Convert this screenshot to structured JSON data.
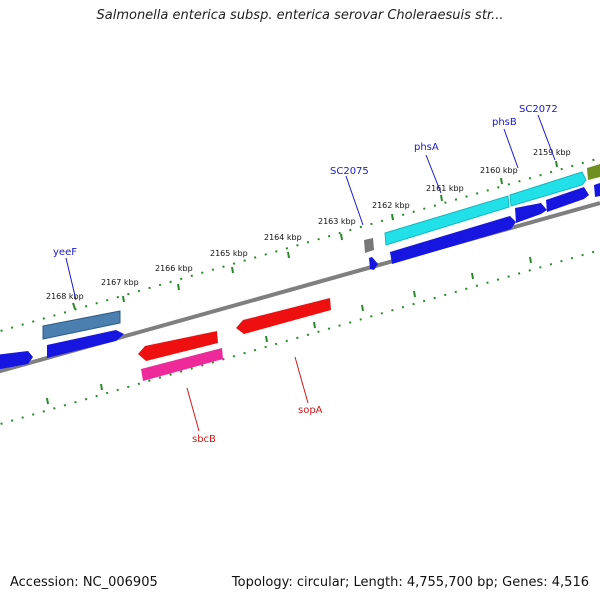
{
  "title": "Salmonella enterica subsp. enterica serovar Choleraesuis str...",
  "footer": {
    "accession": "Accession: NC_006905",
    "summary": "Topology: circular; Length: 4,755,700 bp; Genes: 4,516"
  },
  "colors": {
    "backbone": "#7f7f7f",
    "tick_dots": "#2a8a2a",
    "fwd_label": "#1a1acc",
    "rev_label": "#cc1a1a",
    "cds_blue": "#1616e0",
    "cds_cyan": "#22e0e8",
    "cds_steel": "#4a7fb0",
    "cds_grey": "#777777",
    "cds_olive": "#6f8f1f",
    "cds_red": "#ee1010",
    "cds_pink": "#ee2a9a"
  },
  "scale": {
    "tick_labels": [
      "2168 kbp",
      "2167 kbp",
      "2166 kbp",
      "2165 kbp",
      "2164 kbp",
      "2163 kbp",
      "2162 kbp",
      "2161 kbp",
      "2160 kbp",
      "2159 kbp"
    ]
  },
  "genes": {
    "forward_labels": [
      "yeeF",
      "SC2075",
      "phsA",
      "phsB",
      "SC2072"
    ],
    "reverse_labels": [
      "sbcB",
      "sopA"
    ]
  }
}
